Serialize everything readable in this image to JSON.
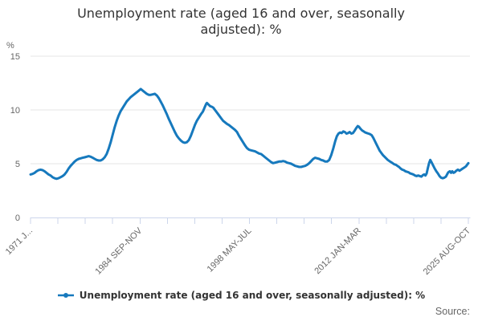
{
  "title": {
    "text": "Unemployment rate (aged 16 and over, seasonally adjusted): %"
  },
  "legend": {
    "label": "Unemployment rate (aged 16 and over, seasonally adjusted): %"
  },
  "footer": {
    "source_label": "Source:"
  },
  "colors": {
    "line": "#1679bd",
    "grid": "#e6e6e6",
    "axis": "#ccd6eb",
    "title_text": "#333333",
    "axis_label_text": "#666666",
    "source_text": "#666666"
  },
  "chart_data": {
    "type": "line",
    "title": "Unemployment rate (aged 16 and over, seasonally adjusted): %",
    "xlabel": "",
    "ylabel": "%",
    "ylabel_unit": "%",
    "ylim": [
      0,
      15
    ],
    "y_ticks": [
      0,
      5,
      10,
      15
    ],
    "grid": "horizontal",
    "legend_position": "bottom",
    "x_range_years": [
      1971.1,
      2025.7
    ],
    "x_tick_count": 17,
    "x_tick_label_indices": [
      0,
      4,
      8,
      12,
      16
    ],
    "x_tick_labels": [
      "1971 J...",
      "1984 SEP-NOV",
      "1998 MAY-JUL",
      "2012 JAN-MAR",
      "2025 AUG-OCT"
    ],
    "series": [
      {
        "name": "Unemployment rate (aged 16 and over, seasonally adjusted): %",
        "points": [
          [
            1971.1,
            4.0
          ],
          [
            1971.35,
            4.05
          ],
          [
            1971.6,
            4.15
          ],
          [
            1971.85,
            4.3
          ],
          [
            1972.1,
            4.4
          ],
          [
            1972.35,
            4.45
          ],
          [
            1972.6,
            4.4
          ],
          [
            1972.85,
            4.3
          ],
          [
            1973.1,
            4.15
          ],
          [
            1973.35,
            4.0
          ],
          [
            1973.6,
            3.9
          ],
          [
            1973.85,
            3.75
          ],
          [
            1974.1,
            3.65
          ],
          [
            1974.35,
            3.6
          ],
          [
            1974.6,
            3.65
          ],
          [
            1974.85,
            3.75
          ],
          [
            1975.1,
            3.85
          ],
          [
            1975.35,
            4.0
          ],
          [
            1975.6,
            4.25
          ],
          [
            1975.85,
            4.55
          ],
          [
            1976.1,
            4.8
          ],
          [
            1976.35,
            5.0
          ],
          [
            1976.6,
            5.2
          ],
          [
            1976.85,
            5.35
          ],
          [
            1977.1,
            5.45
          ],
          [
            1977.35,
            5.5
          ],
          [
            1977.6,
            5.55
          ],
          [
            1977.85,
            5.6
          ],
          [
            1978.1,
            5.65
          ],
          [
            1978.35,
            5.7
          ],
          [
            1978.6,
            5.65
          ],
          [
            1978.85,
            5.55
          ],
          [
            1979.1,
            5.45
          ],
          [
            1979.35,
            5.35
          ],
          [
            1979.6,
            5.3
          ],
          [
            1979.85,
            5.3
          ],
          [
            1980.1,
            5.4
          ],
          [
            1980.35,
            5.6
          ],
          [
            1980.6,
            5.9
          ],
          [
            1980.85,
            6.4
          ],
          [
            1981.1,
            7.0
          ],
          [
            1981.35,
            7.7
          ],
          [
            1981.6,
            8.4
          ],
          [
            1981.85,
            9.0
          ],
          [
            1982.1,
            9.5
          ],
          [
            1982.35,
            9.9
          ],
          [
            1982.6,
            10.2
          ],
          [
            1982.85,
            10.5
          ],
          [
            1983.1,
            10.8
          ],
          [
            1983.35,
            11.0
          ],
          [
            1983.6,
            11.2
          ],
          [
            1983.85,
            11.35
          ],
          [
            1984.1,
            11.5
          ],
          [
            1984.35,
            11.65
          ],
          [
            1984.6,
            11.8
          ],
          [
            1984.85,
            11.95
          ],
          [
            1985.1,
            11.8
          ],
          [
            1985.35,
            11.65
          ],
          [
            1985.6,
            11.5
          ],
          [
            1985.85,
            11.4
          ],
          [
            1986.1,
            11.4
          ],
          [
            1986.35,
            11.45
          ],
          [
            1986.6,
            11.5
          ],
          [
            1986.85,
            11.35
          ],
          [
            1987.1,
            11.1
          ],
          [
            1987.35,
            10.75
          ],
          [
            1987.6,
            10.4
          ],
          [
            1987.85,
            10.0
          ],
          [
            1988.1,
            9.6
          ],
          [
            1988.35,
            9.15
          ],
          [
            1988.6,
            8.75
          ],
          [
            1988.85,
            8.35
          ],
          [
            1989.1,
            7.95
          ],
          [
            1989.35,
            7.6
          ],
          [
            1989.6,
            7.35
          ],
          [
            1989.85,
            7.15
          ],
          [
            1990.1,
            7.0
          ],
          [
            1990.35,
            6.95
          ],
          [
            1990.6,
            7.0
          ],
          [
            1990.85,
            7.2
          ],
          [
            1991.1,
            7.6
          ],
          [
            1991.35,
            8.1
          ],
          [
            1991.6,
            8.6
          ],
          [
            1991.85,
            9.0
          ],
          [
            1992.1,
            9.3
          ],
          [
            1992.35,
            9.6
          ],
          [
            1992.6,
            9.85
          ],
          [
            1992.85,
            10.3
          ],
          [
            1993.0,
            10.55
          ],
          [
            1993.1,
            10.65
          ],
          [
            1993.3,
            10.5
          ],
          [
            1993.5,
            10.35
          ],
          [
            1993.7,
            10.3
          ],
          [
            1993.9,
            10.2
          ],
          [
            1994.1,
            10.0
          ],
          [
            1994.35,
            9.75
          ],
          [
            1994.6,
            9.5
          ],
          [
            1994.85,
            9.25
          ],
          [
            1995.1,
            9.0
          ],
          [
            1995.35,
            8.85
          ],
          [
            1995.6,
            8.7
          ],
          [
            1995.85,
            8.6
          ],
          [
            1996.1,
            8.45
          ],
          [
            1996.35,
            8.3
          ],
          [
            1996.6,
            8.15
          ],
          [
            1996.85,
            7.95
          ],
          [
            1997.1,
            7.6
          ],
          [
            1997.35,
            7.3
          ],
          [
            1997.6,
            7.0
          ],
          [
            1997.85,
            6.7
          ],
          [
            1998.1,
            6.45
          ],
          [
            1998.35,
            6.3
          ],
          [
            1998.6,
            6.25
          ],
          [
            1998.85,
            6.2
          ],
          [
            1999.1,
            6.15
          ],
          [
            1999.35,
            6.05
          ],
          [
            1999.6,
            5.95
          ],
          [
            1999.85,
            5.9
          ],
          [
            2000.1,
            5.75
          ],
          [
            2000.35,
            5.6
          ],
          [
            2000.6,
            5.45
          ],
          [
            2000.85,
            5.3
          ],
          [
            2001.1,
            5.15
          ],
          [
            2001.35,
            5.05
          ],
          [
            2001.6,
            5.1
          ],
          [
            2001.85,
            5.15
          ],
          [
            2002.1,
            5.2
          ],
          [
            2002.35,
            5.2
          ],
          [
            2002.6,
            5.25
          ],
          [
            2002.85,
            5.2
          ],
          [
            2003.1,
            5.1
          ],
          [
            2003.35,
            5.05
          ],
          [
            2003.6,
            5.0
          ],
          [
            2003.85,
            4.9
          ],
          [
            2004.1,
            4.8
          ],
          [
            2004.35,
            4.75
          ],
          [
            2004.6,
            4.7
          ],
          [
            2004.85,
            4.7
          ],
          [
            2005.1,
            4.75
          ],
          [
            2005.35,
            4.8
          ],
          [
            2005.6,
            4.9
          ],
          [
            2005.85,
            5.05
          ],
          [
            2006.1,
            5.25
          ],
          [
            2006.35,
            5.45
          ],
          [
            2006.6,
            5.55
          ],
          [
            2006.85,
            5.5
          ],
          [
            2007.1,
            5.45
          ],
          [
            2007.35,
            5.35
          ],
          [
            2007.6,
            5.3
          ],
          [
            2007.85,
            5.2
          ],
          [
            2008.1,
            5.2
          ],
          [
            2008.35,
            5.35
          ],
          [
            2008.6,
            5.8
          ],
          [
            2008.85,
            6.4
          ],
          [
            2009.1,
            7.1
          ],
          [
            2009.3,
            7.55
          ],
          [
            2009.5,
            7.8
          ],
          [
            2009.7,
            7.9
          ],
          [
            2009.9,
            7.85
          ],
          [
            2010.1,
            8.0
          ],
          [
            2010.3,
            7.95
          ],
          [
            2010.5,
            7.8
          ],
          [
            2010.7,
            7.85
          ],
          [
            2010.9,
            7.95
          ],
          [
            2011.1,
            7.8
          ],
          [
            2011.3,
            7.85
          ],
          [
            2011.5,
            8.05
          ],
          [
            2011.7,
            8.3
          ],
          [
            2011.9,
            8.5
          ],
          [
            2012.05,
            8.45
          ],
          [
            2012.25,
            8.25
          ],
          [
            2012.45,
            8.1
          ],
          [
            2012.65,
            8.0
          ],
          [
            2012.85,
            7.9
          ],
          [
            2013.05,
            7.85
          ],
          [
            2013.25,
            7.8
          ],
          [
            2013.45,
            7.75
          ],
          [
            2013.65,
            7.65
          ],
          [
            2013.85,
            7.4
          ],
          [
            2014.05,
            7.1
          ],
          [
            2014.25,
            6.8
          ],
          [
            2014.45,
            6.5
          ],
          [
            2014.65,
            6.2
          ],
          [
            2014.85,
            6.0
          ],
          [
            2015.05,
            5.8
          ],
          [
            2015.25,
            5.65
          ],
          [
            2015.45,
            5.5
          ],
          [
            2015.65,
            5.35
          ],
          [
            2015.85,
            5.25
          ],
          [
            2016.05,
            5.15
          ],
          [
            2016.25,
            5.05
          ],
          [
            2016.45,
            4.95
          ],
          [
            2016.65,
            4.9
          ],
          [
            2016.85,
            4.8
          ],
          [
            2017.05,
            4.7
          ],
          [
            2017.25,
            4.55
          ],
          [
            2017.45,
            4.45
          ],
          [
            2017.65,
            4.4
          ],
          [
            2017.85,
            4.3
          ],
          [
            2018.05,
            4.25
          ],
          [
            2018.25,
            4.2
          ],
          [
            2018.45,
            4.1
          ],
          [
            2018.65,
            4.05
          ],
          [
            2018.85,
            4.0
          ],
          [
            2019.05,
            3.9
          ],
          [
            2019.25,
            3.85
          ],
          [
            2019.45,
            3.9
          ],
          [
            2019.65,
            3.85
          ],
          [
            2019.85,
            3.8
          ],
          [
            2020.05,
            3.95
          ],
          [
            2020.2,
            4.0
          ],
          [
            2020.35,
            3.9
          ],
          [
            2020.5,
            4.1
          ],
          [
            2020.65,
            4.6
          ],
          [
            2020.8,
            5.05
          ],
          [
            2020.95,
            5.35
          ],
          [
            2021.1,
            5.15
          ],
          [
            2021.3,
            4.85
          ],
          [
            2021.5,
            4.55
          ],
          [
            2021.7,
            4.3
          ],
          [
            2021.9,
            4.1
          ],
          [
            2022.1,
            3.85
          ],
          [
            2022.3,
            3.7
          ],
          [
            2022.5,
            3.65
          ],
          [
            2022.7,
            3.7
          ],
          [
            2022.9,
            3.8
          ],
          [
            2023.05,
            4.0
          ],
          [
            2023.2,
            4.2
          ],
          [
            2023.4,
            4.3
          ],
          [
            2023.55,
            4.15
          ],
          [
            2023.7,
            4.3
          ],
          [
            2023.85,
            4.15
          ],
          [
            2024.0,
            4.2
          ],
          [
            2024.2,
            4.35
          ],
          [
            2024.4,
            4.45
          ],
          [
            2024.6,
            4.35
          ],
          [
            2024.8,
            4.45
          ],
          [
            2025.0,
            4.55
          ],
          [
            2025.2,
            4.65
          ],
          [
            2025.4,
            4.75
          ],
          [
            2025.55,
            4.9
          ],
          [
            2025.7,
            5.05
          ]
        ]
      }
    ]
  }
}
